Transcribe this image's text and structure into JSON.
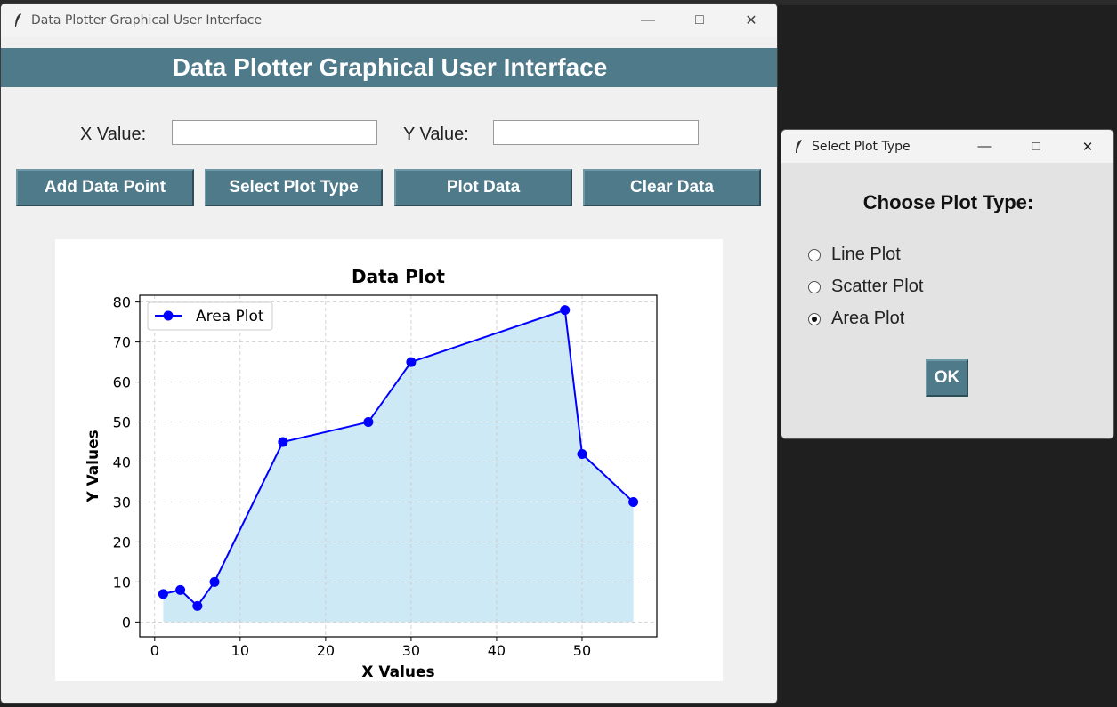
{
  "main_window": {
    "title": "Data Plotter Graphical User Interface",
    "banner": "Data Plotter Graphical User Interface",
    "x_label": "X Value:",
    "y_label": "Y Value:",
    "x_value": "",
    "y_value": "",
    "buttons": {
      "add": "Add Data Point",
      "select": "Select Plot Type",
      "plot": "Plot Data",
      "clear": "Clear Data"
    }
  },
  "dialog": {
    "title": "Select Plot Type",
    "heading": "Choose Plot Type:",
    "options": [
      "Line Plot",
      "Scatter Plot",
      "Area Plot"
    ],
    "selected": "Area Plot",
    "ok": "OK"
  },
  "colors": {
    "accent": "#4e7a8a",
    "line": "#0000ff",
    "fill": "#cde9f6"
  },
  "chart_data": {
    "type": "area",
    "title": "Data Plot",
    "xlabel": "X Values",
    "ylabel": "Y Values",
    "x": [
      1,
      3,
      5,
      7,
      15,
      25,
      30,
      48,
      50,
      56
    ],
    "y": [
      7,
      8,
      4,
      10,
      45,
      50,
      65,
      78,
      42,
      30
    ],
    "series": [
      {
        "name": "Area Plot",
        "color": "#0000ff",
        "fill": "#cde9f6"
      }
    ],
    "xlim": [
      -1.75,
      58.75
    ],
    "ylim": [
      -3.7,
      81.7
    ],
    "xticks": [
      0,
      10,
      20,
      30,
      40,
      50
    ],
    "yticks": [
      0,
      10,
      20,
      30,
      40,
      50,
      60,
      70,
      80
    ],
    "grid": true,
    "legend_position": "top-left"
  }
}
